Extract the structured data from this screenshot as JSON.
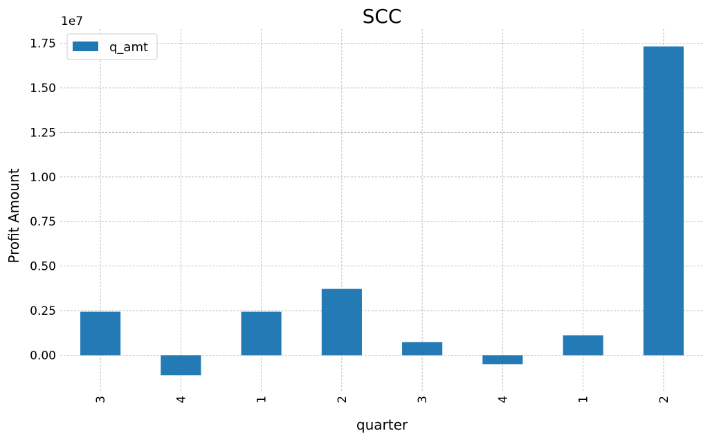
{
  "chart_data": {
    "type": "bar",
    "title": "SCC",
    "xlabel": "quarter",
    "ylabel": "Profit Amount",
    "y_offset_label": "1e7",
    "categories": [
      "3",
      "4",
      "1",
      "2",
      "3",
      "4",
      "1",
      "2"
    ],
    "series": [
      {
        "name": "q_amt",
        "color": "#1f77b4",
        "values": [
          2440000,
          -1120000,
          2440000,
          3720000,
          740000,
          -500000,
          1120000,
          17320000
        ]
      }
    ],
    "ylim": [
      -2000000,
      18300000
    ],
    "yticks": [
      0,
      2500000,
      5000000,
      7500000,
      10000000,
      12500000,
      15000000,
      17500000
    ],
    "ytick_labels": [
      "0.00",
      "0.25",
      "0.50",
      "0.75",
      "1.00",
      "1.25",
      "1.50",
      "1.75"
    ],
    "grid": true,
    "legend_position": "top-left"
  }
}
